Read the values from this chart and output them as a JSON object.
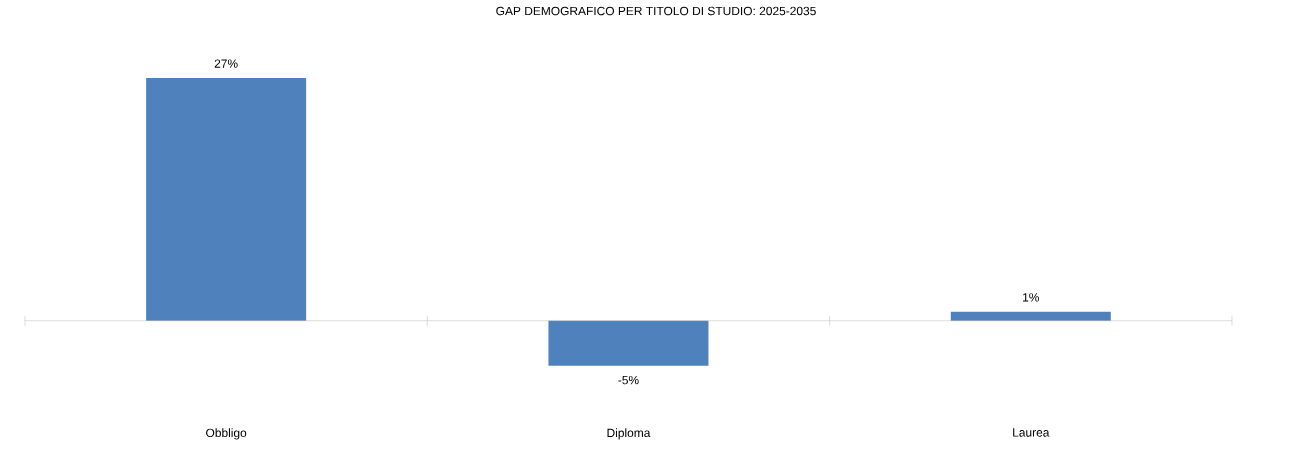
{
  "chart_data": {
    "type": "bar",
    "title": "GAP DEMOGRAFICO PER TITOLO DI STUDIO: 2025-2035",
    "categories": [
      "Obbligo",
      "Diploma",
      "Laurea"
    ],
    "values": [
      27,
      -5,
      1
    ],
    "value_labels": [
      "27%",
      "-5%",
      "1%"
    ],
    "color": "#4f81bd"
  }
}
